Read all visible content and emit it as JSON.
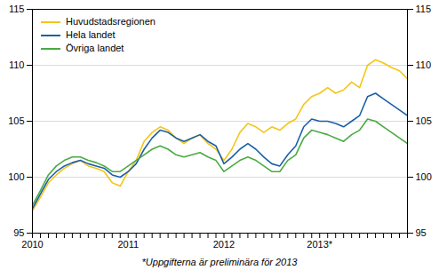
{
  "chart_data": {
    "type": "line",
    "footnote": "*Uppgifterna är preliminära för 2013",
    "categories": [
      "2010",
      null,
      null,
      null,
      null,
      null,
      null,
      null,
      null,
      null,
      null,
      null,
      "2011",
      null,
      null,
      null,
      null,
      null,
      null,
      null,
      null,
      null,
      null,
      null,
      "2012",
      null,
      null,
      null,
      null,
      null,
      null,
      null,
      null,
      null,
      null,
      null,
      "2013*",
      null,
      null,
      null,
      null,
      null,
      null,
      null,
      null,
      null,
      null,
      null
    ],
    "series": [
      {
        "name": "Huvudstadsregionen",
        "color": "#f5c518",
        "values": [
          97.0,
          98.2,
          99.5,
          100.2,
          100.8,
          101.2,
          101.5,
          101.0,
          100.8,
          100.5,
          99.5,
          99.2,
          100.5,
          101.5,
          103.2,
          104.0,
          104.5,
          104.2,
          103.5,
          103.0,
          103.5,
          103.8,
          103.0,
          102.5,
          101.5,
          102.5,
          104.0,
          104.8,
          104.5,
          104.0,
          104.5,
          104.2,
          104.8,
          105.2,
          106.5,
          107.2,
          107.5,
          108.0,
          107.5,
          107.8,
          108.5,
          108.0,
          110.0,
          110.5,
          110.2,
          109.8,
          109.5,
          108.8
        ]
      },
      {
        "name": "Hela landet",
        "color": "#1a5fa8",
        "values": [
          97.2,
          98.5,
          99.8,
          100.5,
          101.0,
          101.3,
          101.5,
          101.2,
          101.0,
          100.8,
          100.2,
          100.0,
          100.5,
          101.2,
          102.5,
          103.5,
          104.2,
          104.0,
          103.5,
          103.2,
          103.5,
          103.8,
          103.2,
          102.8,
          101.2,
          101.8,
          102.5,
          103.0,
          102.5,
          101.8,
          101.2,
          101.0,
          102.0,
          102.8,
          104.5,
          105.2,
          105.0,
          105.0,
          104.8,
          104.5,
          105.0,
          105.5,
          107.2,
          107.5,
          107.0,
          106.5,
          106.0,
          105.5
        ]
      },
      {
        "name": "Övriga landet",
        "color": "#4aaa42",
        "values": [
          97.5,
          98.8,
          100.2,
          101.0,
          101.5,
          101.8,
          101.8,
          101.5,
          101.3,
          101.0,
          100.5,
          100.5,
          101.0,
          101.5,
          102.0,
          102.5,
          102.8,
          102.5,
          102.0,
          101.8,
          102.0,
          102.2,
          101.8,
          101.5,
          100.5,
          101.0,
          101.5,
          101.8,
          101.5,
          101.0,
          100.5,
          100.5,
          101.5,
          102.0,
          103.5,
          104.2,
          104.0,
          103.8,
          103.5,
          103.2,
          103.8,
          104.2,
          105.2,
          105.0,
          104.5,
          104.0,
          103.5,
          103.0
        ]
      }
    ],
    "ylim": [
      95,
      115
    ],
    "yticks": [
      95,
      100,
      105,
      110,
      115
    ],
    "grid": true,
    "legend": "upper left"
  }
}
